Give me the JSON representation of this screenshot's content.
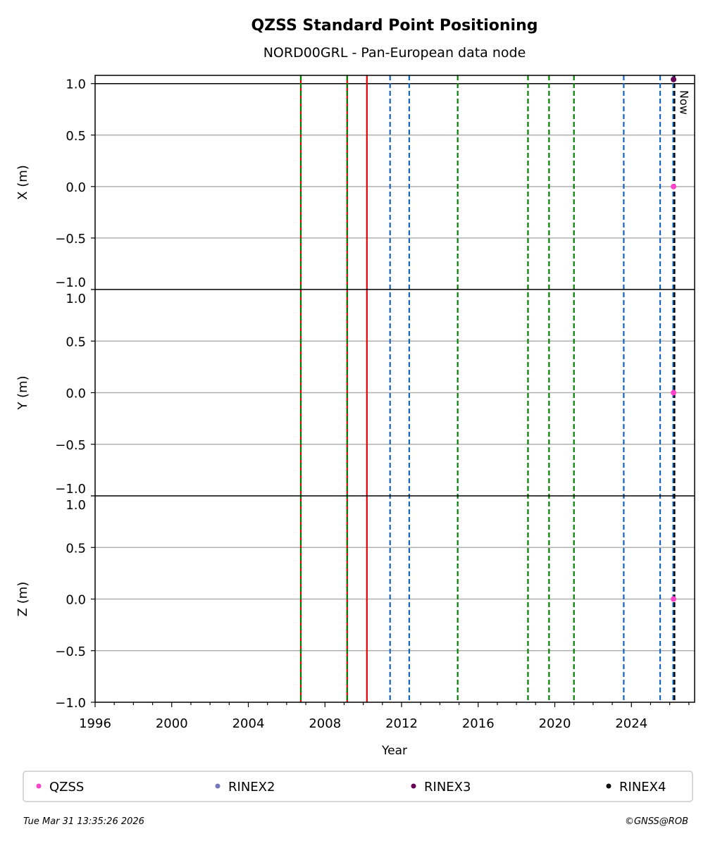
{
  "chart_data": {
    "type": "scatter",
    "title": "QZSS Standard Point Positioning",
    "subtitle": "NORD00GRL - Pan-European data node",
    "xlabel": "Year",
    "xlim": [
      1996,
      2027.3
    ],
    "xticks": [
      "1996",
      "2000",
      "2004",
      "2008",
      "2012",
      "2016",
      "2020",
      "2024"
    ],
    "grid": "horizontal",
    "panels": [
      {
        "ylabel": "X (m)",
        "ylim": [
          -1,
          1.08
        ],
        "yticks": [
          "−1.0",
          "−0.5",
          "0.0",
          "0.5",
          "1.0"
        ]
      },
      {
        "ylabel": "Y (m)",
        "ylim": [
          -1,
          1
        ],
        "yticks": [
          "−1.0",
          "−0.5",
          "0.0",
          "0.5",
          "1.0"
        ]
      },
      {
        "ylabel": "Z (m)",
        "ylim": [
          -1,
          1
        ],
        "yticks": [
          "−1.0",
          "−0.5",
          "0.0",
          "0.5",
          "1.0"
        ]
      }
    ],
    "series": [
      {
        "name": "QZSS",
        "color": "#ff44cc",
        "points": [
          {
            "panel": 0,
            "x": 2026.2,
            "y": 0
          },
          {
            "panel": 1,
            "x": 2026.2,
            "y": 0
          },
          {
            "panel": 2,
            "x": 2026.2,
            "y": 0
          }
        ]
      },
      {
        "name": "RINEX2",
        "color": "#7777bb",
        "points": []
      },
      {
        "name": "RINEX3",
        "color": "#660055",
        "points": [
          {
            "panel": 0,
            "x": 2026.2,
            "y": 1.04
          }
        ]
      },
      {
        "name": "RINEX4",
        "color": "#111111",
        "points": []
      }
    ],
    "event_lines": [
      {
        "x": 2006.74,
        "color": "#e00000",
        "style": "solid"
      },
      {
        "x": 2006.74,
        "color": "#008000",
        "style": "dashed"
      },
      {
        "x": 2009.16,
        "color": "#e00000",
        "style": "solid"
      },
      {
        "x": 2009.16,
        "color": "#008000",
        "style": "dashed"
      },
      {
        "x": 2010.19,
        "color": "#e00000",
        "style": "solid"
      },
      {
        "x": 2011.4,
        "color": "#1565c0",
        "style": "dashed"
      },
      {
        "x": 2012.4,
        "color": "#1565c0",
        "style": "dashed"
      },
      {
        "x": 2014.93,
        "color": "#008000",
        "style": "dashed"
      },
      {
        "x": 2018.6,
        "color": "#008000",
        "style": "dashed"
      },
      {
        "x": 2019.7,
        "color": "#008000",
        "style": "dashed"
      },
      {
        "x": 2021.0,
        "color": "#008000",
        "style": "dashed"
      },
      {
        "x": 2023.6,
        "color": "#1565c0",
        "style": "dashed"
      },
      {
        "x": 2025.5,
        "color": "#1565c0",
        "style": "dashed"
      },
      {
        "x": 2026.18,
        "color": "#1565c0",
        "style": "dashed"
      },
      {
        "x": 2026.25,
        "color": "#000000",
        "style": "dashed"
      }
    ],
    "now_label": "Now",
    "now_x": 2026.25,
    "legend": "bottom"
  },
  "footer": {
    "timestamp": "Tue Mar 31 13:35:26 2026",
    "credit": "©GNSS@ROB"
  }
}
